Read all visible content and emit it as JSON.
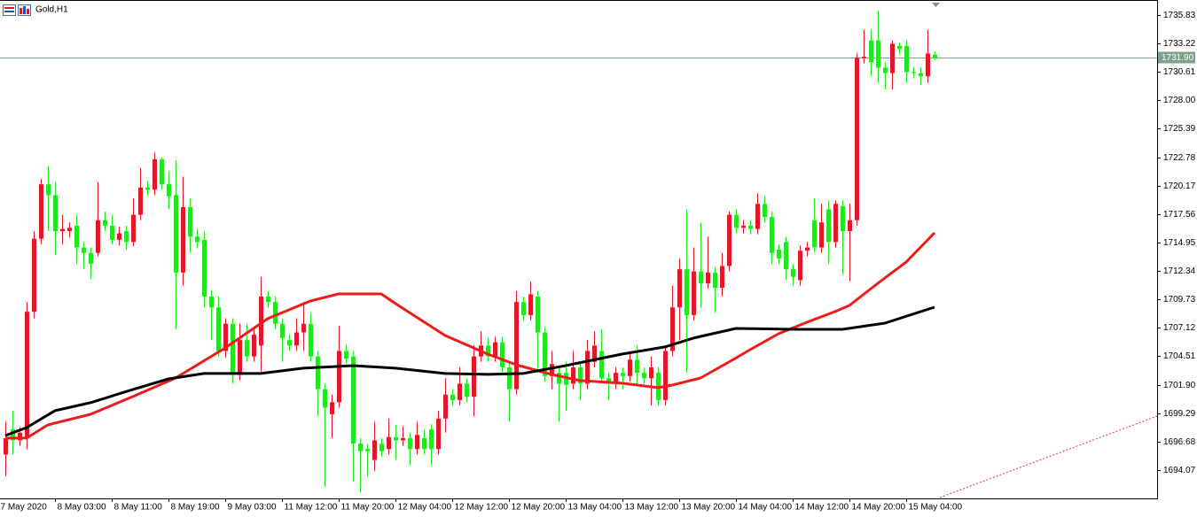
{
  "chart_data": {
    "type": "candlestick",
    "title": "Gold,H1",
    "x": [
      0,
      1,
      2,
      3,
      4,
      5,
      6,
      7,
      8,
      9,
      10,
      11,
      12,
      13,
      14,
      15,
      16,
      17,
      18,
      19,
      20,
      21,
      22,
      23,
      24,
      25,
      26,
      27,
      28,
      29,
      30,
      31,
      32,
      33,
      34,
      35,
      36,
      37,
      38,
      39,
      40,
      41,
      42,
      43,
      44,
      45,
      46,
      47,
      48,
      49,
      50,
      51,
      52,
      53,
      54,
      55,
      56,
      57,
      58,
      59,
      60,
      61,
      62,
      63,
      64,
      65,
      66,
      67,
      68,
      69,
      70,
      71,
      72,
      73,
      74,
      75,
      76,
      77,
      78,
      79,
      80,
      81,
      82,
      83,
      84,
      85,
      86,
      87,
      88,
      89,
      90,
      91,
      92,
      93,
      94,
      95,
      96,
      97,
      98,
      99,
      100,
      101,
      102,
      103,
      104,
      105,
      106,
      107,
      108,
      109,
      110,
      111,
      112,
      113,
      114,
      115,
      116,
      117,
      118,
      119,
      120,
      121,
      122,
      123,
      124,
      125,
      126,
      127,
      128,
      129,
      130,
      131
    ],
    "open": [
      1695.5,
      1697.8,
      1696.8,
      1697.0,
      1708.6,
      1715.3,
      1720.3,
      1719.3,
      1716.0,
      1716.0,
      1716.5,
      1714.5,
      1714.0,
      1714.0,
      1717.0,
      1716.5,
      1715.2,
      1716.0,
      1715.0,
      1717.5,
      1720.0,
      1719.8,
      1722.6,
      1720.3,
      1719.3,
      1712.2,
      1718.2,
      1715.5,
      1715.2,
      1710.0,
      1709.0,
      1705.0,
      1707.5,
      1702.8,
      1706.0,
      1704.5,
      1705.5,
      1710.0,
      1709.5,
      1707.5,
      1706.0,
      1705.5,
      1706.7,
      1707.5,
      1704.5,
      1701.5,
      1699.2,
      1700.3,
      1705.0,
      1704.5,
      1696.5,
      1696.0,
      1695.0,
      1696.5,
      1696.0,
      1697.1,
      1696.8,
      1697.0,
      1696.0,
      1697.0,
      1697.8,
      1696.0,
      1698.8,
      1701.0,
      1700.5,
      1702.0,
      1700.8,
      1704.5,
      1705.5,
      1704.5,
      1705.8,
      1703.5,
      1701.5,
      1709.5,
      1708.3,
      1710.0,
      1706.7,
      1702.7,
      1703.0,
      1703.0,
      1702.0,
      1703.5,
      1702.0,
      1704.0,
      1705.0,
      1702.5,
      1702.0,
      1703.0,
      1702.7,
      1704.2,
      1703.0,
      1702.5,
      1703.0,
      1700.5,
      1705.0,
      1709.0,
      1712.5,
      1708.3,
      1712.3,
      1711.2,
      1712.2,
      1710.8,
      1712.8,
      1717.5,
      1716.3,
      1716.5,
      1716.2,
      1718.5,
      1717.3,
      1714.3,
      1715.0,
      1712.5,
      1711.5,
      1714.2,
      1717.0,
      1714.5,
      1718.0,
      1715.0,
      1718.3,
      1716.0,
      1717.0,
      1731.9,
      1733.5,
      1733.5,
      1731.0,
      1730.5,
      1733.0,
      1733.0,
      1730.6,
      1730.5,
      1730.2,
      1732.2
    ],
    "high": [
      1698.5,
      1699.5,
      1698.0,
      1709.5,
      1716.0,
      1720.8,
      1722.0,
      1720.5,
      1717.5,
      1716.8,
      1717.5,
      1715.0,
      1714.5,
      1720.5,
      1717.8,
      1717.5,
      1716.4,
      1716.5,
      1719.0,
      1721.8,
      1720.6,
      1723.2,
      1722.8,
      1721.5,
      1722.5,
      1721.0,
      1719.0,
      1716.2,
      1716.0,
      1710.6,
      1710.0,
      1708.0,
      1708.0,
      1707.5,
      1707.5,
      1707.0,
      1711.8,
      1710.5,
      1710.0,
      1708.0,
      1706.5,
      1708.0,
      1709.5,
      1708.5,
      1705.0,
      1702.0,
      1701.0,
      1707.3,
      1705.6,
      1705.0,
      1697.0,
      1696.5,
      1698.5,
      1697.0,
      1698.8,
      1698.2,
      1698.1,
      1697.5,
      1698.5,
      1697.8,
      1698.3,
      1699.5,
      1702.5,
      1701.5,
      1703.5,
      1702.5,
      1705.5,
      1706.8,
      1706.2,
      1706.3,
      1706.3,
      1704.0,
      1710.5,
      1710.0,
      1711.4,
      1710.5,
      1707.2,
      1705.0,
      1703.5,
      1704.0,
      1705.0,
      1704.0,
      1706.0,
      1706.8,
      1707.0,
      1703.0,
      1703.5,
      1703.5,
      1705.0,
      1705.5,
      1703.5,
      1704.5,
      1703.5,
      1705.5,
      1711.0,
      1713.5,
      1718.0,
      1714.5,
      1716.8,
      1715.5,
      1712.7,
      1714.0,
      1717.8,
      1718.0,
      1717.0,
      1717.0,
      1719.5,
      1719.2,
      1717.8,
      1714.8,
      1715.5,
      1713.0,
      1714.7,
      1715.0,
      1719.0,
      1718.5,
      1718.8,
      1718.8,
      1718.8,
      1718.5,
      1732.3,
      1734.5,
      1734.5,
      1736.2,
      1731.5,
      1733.5,
      1733.3,
      1733.5,
      1731.1,
      1731.0,
      1734.5,
      1732.5
    ],
    "low": [
      1693.5,
      1695.5,
      1696.3,
      1696.0,
      1708.0,
      1714.8,
      1716.0,
      1713.8,
      1714.8,
      1715.4,
      1713.0,
      1712.5,
      1711.6,
      1713.7,
      1716.0,
      1714.8,
      1714.7,
      1714.3,
      1714.6,
      1717.0,
      1719.2,
      1719.3,
      1719.8,
      1718.0,
      1707.0,
      1711.0,
      1714.0,
      1714.4,
      1709.0,
      1706.0,
      1704.5,
      1704.4,
      1702.0,
      1702.3,
      1704.0,
      1704.0,
      1703.0,
      1709.0,
      1707.0,
      1704.0,
      1705.0,
      1705.0,
      1705.0,
      1704.0,
      1699.0,
      1692.5,
      1697.0,
      1699.8,
      1703.8,
      1693.0,
      1692.0,
      1693.5,
      1694.0,
      1695.3,
      1695.5,
      1695.0,
      1696.3,
      1694.5,
      1695.5,
      1695.5,
      1694.5,
      1695.5,
      1697.5,
      1700.0,
      1700.0,
      1700.3,
      1699.0,
      1704.0,
      1704.0,
      1704.0,
      1703.0,
      1698.5,
      1701.0,
      1707.8,
      1707.8,
      1703.0,
      1702.2,
      1701.5,
      1698.5,
      1699.5,
      1701.5,
      1700.5,
      1701.5,
      1703.5,
      1702.0,
      1700.5,
      1701.5,
      1701.5,
      1702.2,
      1701.8,
      1702.0,
      1700.0,
      1700.0,
      1700.0,
      1704.5,
      1706.0,
      1703.0,
      1707.8,
      1709.0,
      1710.7,
      1708.5,
      1710.0,
      1712.3,
      1715.8,
      1715.8,
      1715.7,
      1715.7,
      1716.8,
      1713.0,
      1713.0,
      1711.5,
      1711.0,
      1711.0,
      1713.7,
      1714.0,
      1714.0,
      1713.0,
      1714.5,
      1712.0,
      1711.4,
      1716.5,
      1731.4,
      1730.2,
      1729.6,
      1729.0,
      1729.0,
      1732.2,
      1729.6,
      1730.0,
      1729.4,
      1729.6,
      1731.7
    ],
    "close": [
      1697.0,
      1696.8,
      1697.5,
      1708.6,
      1715.3,
      1720.3,
      1719.3,
      1716.0,
      1716.2,
      1716.3,
      1714.5,
      1714.0,
      1713.0,
      1717.0,
      1716.5,
      1715.2,
      1715.8,
      1715.0,
      1717.5,
      1720.0,
      1719.8,
      1722.6,
      1720.3,
      1719.2,
      1712.2,
      1718.2,
      1715.5,
      1715.0,
      1710.0,
      1709.0,
      1705.0,
      1707.5,
      1702.8,
      1706.0,
      1704.5,
      1706.5,
      1710.0,
      1709.5,
      1707.5,
      1706.2,
      1705.5,
      1706.7,
      1707.5,
      1704.5,
      1701.5,
      1699.8,
      1700.3,
      1705.0,
      1704.3,
      1696.5,
      1695.8,
      1695.8,
      1696.8,
      1695.8,
      1697.1,
      1696.8,
      1697.0,
      1696.0,
      1697.3,
      1696.0,
      1696.0,
      1698.8,
      1701.0,
      1700.5,
      1702.0,
      1700.8,
      1704.5,
      1705.5,
      1704.5,
      1705.8,
      1703.5,
      1701.5,
      1709.5,
      1708.3,
      1710.2,
      1706.7,
      1702.7,
      1703.8,
      1702.0,
      1701.9,
      1703.5,
      1702.0,
      1705.0,
      1705.5,
      1702.5,
      1702.0,
      1703.0,
      1702.7,
      1704.2,
      1703.0,
      1702.5,
      1703.5,
      1700.5,
      1705.0,
      1709.0,
      1712.5,
      1708.3,
      1712.3,
      1711.2,
      1712.2,
      1710.8,
      1712.8,
      1717.5,
      1716.3,
      1716.5,
      1716.2,
      1718.5,
      1717.3,
      1714.0,
      1713.5,
      1712.5,
      1711.8,
      1714.2,
      1714.5,
      1714.5,
      1716.8,
      1715.0,
      1718.5,
      1716.0,
      1717.0,
      1731.9,
      1732.0,
      1731.5,
      1731.0,
      1730.5,
      1733.2,
      1732.7,
      1730.6,
      1730.5,
      1730.2,
      1732.3,
      1731.9
    ],
    "up_color": "#e3172b",
    "down_color": "#22e622",
    "lines": [
      {
        "color": "#ee1b1b",
        "x": [
          0,
          3,
          6,
          12,
          18,
          24,
          31,
          37,
          43,
          47,
          53,
          55,
          62,
          68,
          72,
          77,
          81,
          87,
          92,
          94,
          98,
          102,
          105,
          109,
          113,
          117,
          119,
          123,
          127,
          131
        ],
        "values": [
          1697.0,
          1697.0,
          1698.22,
          1699.19,
          1700.82,
          1702.52,
          1705.28,
          1707.97,
          1709.59,
          1710.24,
          1710.24,
          1709.35,
          1706.42,
          1704.72,
          1703.74,
          1702.85,
          1702.28,
          1702.04,
          1701.63,
          1701.87,
          1702.52,
          1703.98,
          1705.12,
          1706.58,
          1707.64,
          1708.62,
          1709.18,
          1711.21,
          1713.16,
          1715.85
        ]
      },
      {
        "color": "#000000",
        "x": [
          0,
          3,
          7,
          12,
          18,
          23,
          28,
          36,
          42,
          49,
          55,
          62,
          68,
          73,
          79,
          87,
          93,
          97,
          103,
          112,
          118,
          124,
          131
        ],
        "values": [
          1697.24,
          1697.97,
          1699.52,
          1700.25,
          1701.47,
          1702.44,
          1702.93,
          1702.93,
          1703.42,
          1703.66,
          1703.42,
          1702.93,
          1702.85,
          1702.93,
          1703.66,
          1704.72,
          1705.37,
          1706.18,
          1707.07,
          1706.99,
          1706.99,
          1707.56,
          1709.02
        ]
      }
    ],
    "xlim": [
      -0.75,
      162.375
    ],
    "xticks": [
      {
        "value": -1,
        "label": "7 May 2020"
      },
      {
        "value": 7,
        "label": "8 May 03:00"
      },
      {
        "value": 15,
        "label": "8 May 11:00"
      },
      {
        "value": 23,
        "label": "8 May 19:00"
      },
      {
        "value": 31,
        "label": "9 May 03:00"
      },
      {
        "value": 39,
        "label": "11 May 12:00"
      },
      {
        "value": 47,
        "label": "11 May 20:00"
      },
      {
        "value": 55,
        "label": "12 May 04:00"
      },
      {
        "value": 63,
        "label": "12 May 12:00"
      },
      {
        "value": 71,
        "label": "12 May 20:00"
      },
      {
        "value": 79,
        "label": "13 May 04:00"
      },
      {
        "value": 87,
        "label": "13 May 12:00"
      },
      {
        "value": 95,
        "label": "13 May 20:00"
      },
      {
        "value": 103,
        "label": "14 May 04:00"
      },
      {
        "value": 111,
        "label": "14 May 12:00"
      },
      {
        "value": 119,
        "label": "14 May 20:00"
      },
      {
        "value": 127,
        "label": "15 May 04:00"
      }
    ],
    "ylim": [
      1691.47,
      1737.21
    ],
    "yticks": [
      1735.83,
      1733.22,
      1730.61,
      {
        "value": 1728,
        "label": "1728.00"
      },
      1725.39,
      1722.78,
      1720.17,
      1717.56,
      1714.95,
      1712.34,
      1709.73,
      1707.12,
      1704.51,
      {
        "value": 1701.9,
        "label": "1701.90"
      },
      1699.29,
      1696.68,
      1694.07
    ],
    "bid": {
      "value": 1731.9,
      "label": "1731.90"
    },
    "bid_color": "#7f9f8f",
    "grid": false
  }
}
